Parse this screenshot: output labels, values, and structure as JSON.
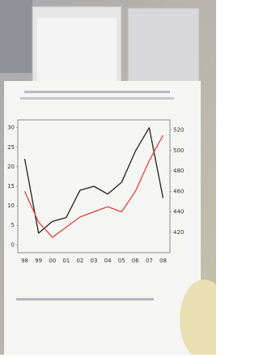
{
  "chart_data": {
    "type": "line",
    "categories": [
      "98",
      "99",
      "00",
      "01",
      "02",
      "03",
      "04",
      "05",
      "06",
      "07",
      "08"
    ],
    "series": [
      {
        "color": "#222222",
        "values": [
          22,
          3,
          6,
          7,
          14,
          15,
          13,
          16,
          24,
          30,
          12
        ]
      },
      {
        "color": "#e0443c",
        "axis": "y2",
        "values": [
          460,
          430,
          415,
          425,
          435,
          440,
          445,
          440,
          460,
          490,
          515
        ]
      }
    ],
    "ylim": [
      -2,
      32
    ],
    "yticks": [
      0,
      5,
      10,
      15,
      20,
      25,
      30
    ],
    "y2lim": [
      400,
      530
    ],
    "y2ticks": [
      420,
      440,
      460,
      480,
      500,
      520
    ],
    "grid": false
  }
}
